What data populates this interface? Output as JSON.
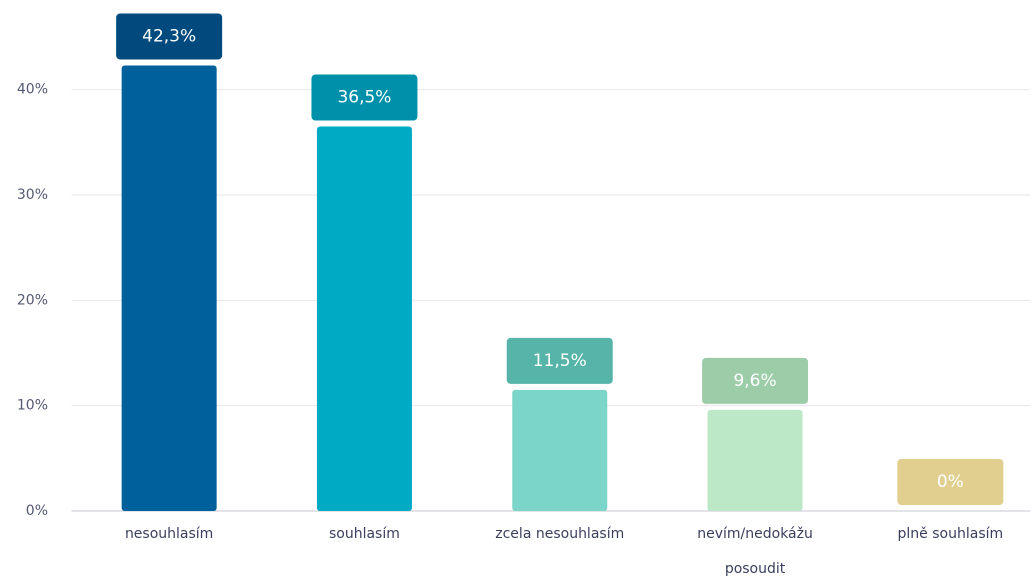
{
  "chart_data": {
    "type": "bar",
    "categories": [
      "nesouhlasím",
      "souhlasím",
      "zcela nesouhlasím",
      "nevím/nedokážu posoudit",
      "plně souhlasím"
    ],
    "values": [
      42.3,
      36.5,
      11.5,
      9.6,
      0
    ],
    "value_labels": [
      "42,3%",
      "36,5%",
      "11,5%",
      "9,6%",
      "0%"
    ],
    "colors": [
      "#00609c",
      "#00aac4",
      "#7bd5c9",
      "#bce8c8",
      "#e3d190"
    ],
    "label_colors": [
      "#004a7d",
      "#0090a9",
      "#56b4a8",
      "#9dcca9",
      "#e0cf8e"
    ],
    "ylim": [
      0,
      45
    ],
    "yticks": [
      {
        "value": 0,
        "label": "0%"
      },
      {
        "value": 10,
        "label": "10%"
      },
      {
        "value": 20,
        "label": "20%"
      },
      {
        "value": 30,
        "label": "30%"
      },
      {
        "value": 40,
        "label": "40%"
      }
    ],
    "grid": true
  }
}
